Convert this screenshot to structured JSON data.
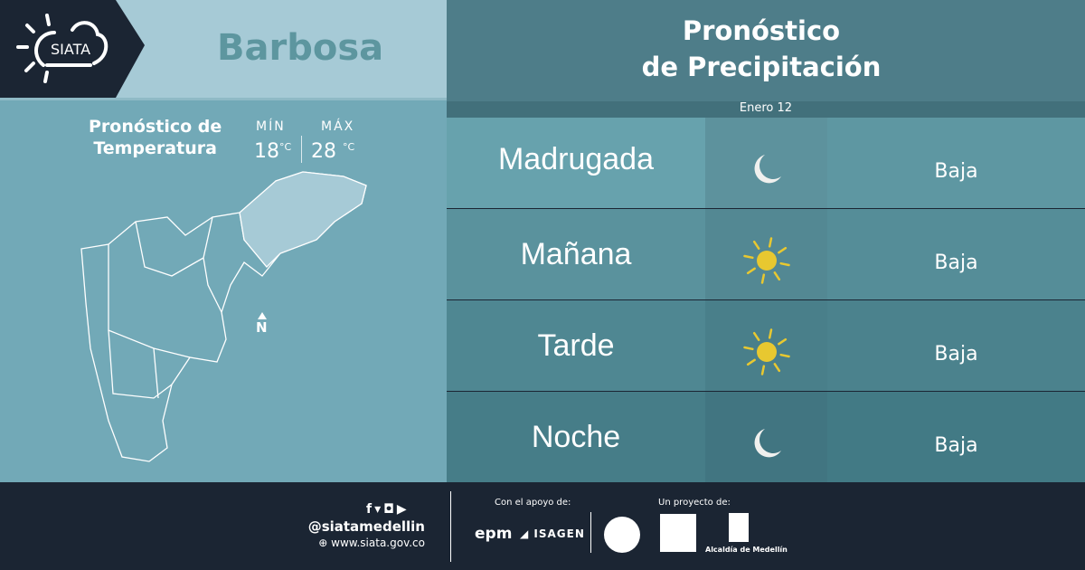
{
  "brand": {
    "logo_text": "SIATA"
  },
  "header": {
    "city": "Barbosa",
    "title_line1": "Pronóstico",
    "title_line2": "de Precipitación",
    "date": "Enero 12"
  },
  "temperature": {
    "title_line1": "Pronóstico de",
    "title_line2": "Temperatura",
    "min_label": "MÍN",
    "min_value": "18",
    "max_label": "MÁX",
    "max_value": "28",
    "unit": "°C"
  },
  "map": {
    "north_label": "N"
  },
  "forecast": [
    {
      "period": "Madrugada",
      "icon": "moon-icon",
      "probability": "Baja"
    },
    {
      "period": "Mañana",
      "icon": "sun-icon",
      "probability": "Baja"
    },
    {
      "period": "Tarde",
      "icon": "sun-icon",
      "probability": "Baja"
    },
    {
      "period": "Noche",
      "icon": "moon-icon",
      "probability": "Baja"
    }
  ],
  "colors": {
    "sun": "#e8c830",
    "moon": "#f0f0ee",
    "dark": "#1b2533"
  },
  "footer": {
    "handle": "@siatamedellin",
    "website": "www.siata.gov.co",
    "support_label": "Con el apoyo de:",
    "project_label": "Un proyecto de:",
    "epm": "epm",
    "isagen": "ISAGEN",
    "alcaldia": "Alcaldía de Medellín"
  }
}
